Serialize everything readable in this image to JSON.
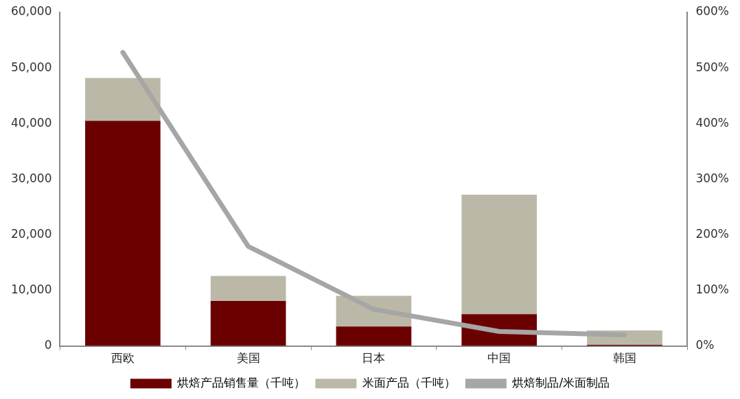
{
  "chart_data": {
    "type": "bar",
    "stacked": true,
    "categories": [
      "西欧",
      "美国",
      "日本",
      "中国",
      "韩国"
    ],
    "series": [
      {
        "name": "烘焙产品销售量（千吨）",
        "color": "#6b0000",
        "values": [
          40500,
          8100,
          3500,
          5700,
          200
        ]
      },
      {
        "name": "米面产品（千吨）",
        "color": "#bcb8a8",
        "values": [
          7700,
          4500,
          5500,
          21500,
          2600
        ]
      },
      {
        "name": "烘焙制品/米面制品",
        "type": "line",
        "axis": "y2",
        "color": "#a6a6a6",
        "values": [
          528,
          179,
          66,
          26,
          20
        ]
      }
    ],
    "ylim": [
      0,
      60000
    ],
    "yticks": [
      {
        "value": 0,
        "label": "0"
      },
      {
        "value": 10000,
        "label": "10,000"
      },
      {
        "value": 20000,
        "label": "20,000"
      },
      {
        "value": 30000,
        "label": "30,000"
      },
      {
        "value": 40000,
        "label": "40,000"
      },
      {
        "value": 50000,
        "label": "50,000"
      },
      {
        "value": 60000,
        "label": "60,000"
      }
    ],
    "y2lim": [
      0,
      600
    ],
    "y2ticks": [
      {
        "value": 0,
        "label": "0%"
      },
      {
        "value": 100,
        "label": "100%"
      },
      {
        "value": 200,
        "label": "200%"
      },
      {
        "value": 300,
        "label": "300%"
      },
      {
        "value": 400,
        "label": "400%"
      },
      {
        "value": 500,
        "label": "500%"
      },
      {
        "value": 600,
        "label": "600%"
      }
    ],
    "grid": false,
    "legend": "bottom",
    "marker": "none"
  }
}
